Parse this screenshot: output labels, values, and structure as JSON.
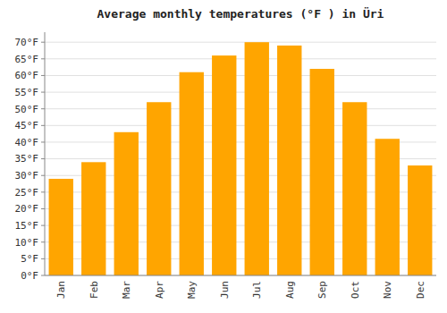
{
  "chart_data": {
    "type": "bar",
    "title": "Average monthly temperatures (°F ) in Üri",
    "categories": [
      "Jan",
      "Feb",
      "Mar",
      "Apr",
      "May",
      "Jun",
      "Jul",
      "Aug",
      "Sep",
      "Oct",
      "Nov",
      "Dec"
    ],
    "values": [
      29,
      34,
      43,
      52,
      61,
      66,
      70,
      69,
      62,
      52,
      41,
      33
    ],
    "color": "#FFA500",
    "ylim": [
      0,
      73
    ],
    "yticks": [
      {
        "value": 0,
        "label": "0°F"
      },
      {
        "value": 5,
        "label": "5°F"
      },
      {
        "value": 10,
        "label": "10°F"
      },
      {
        "value": 15,
        "label": "15°F"
      },
      {
        "value": 20,
        "label": "20°F"
      },
      {
        "value": 25,
        "label": "25°F"
      },
      {
        "value": 30,
        "label": "30°F"
      },
      {
        "value": 35,
        "label": "35°F"
      },
      {
        "value": 40,
        "label": "40°F"
      },
      {
        "value": 45,
        "label": "45°F"
      },
      {
        "value": 50,
        "label": "50°F"
      },
      {
        "value": 55,
        "label": "55°F"
      },
      {
        "value": 60,
        "label": "60°F"
      },
      {
        "value": 65,
        "label": "65°F"
      },
      {
        "value": 70,
        "label": "70°F"
      }
    ],
    "grid": true
  }
}
